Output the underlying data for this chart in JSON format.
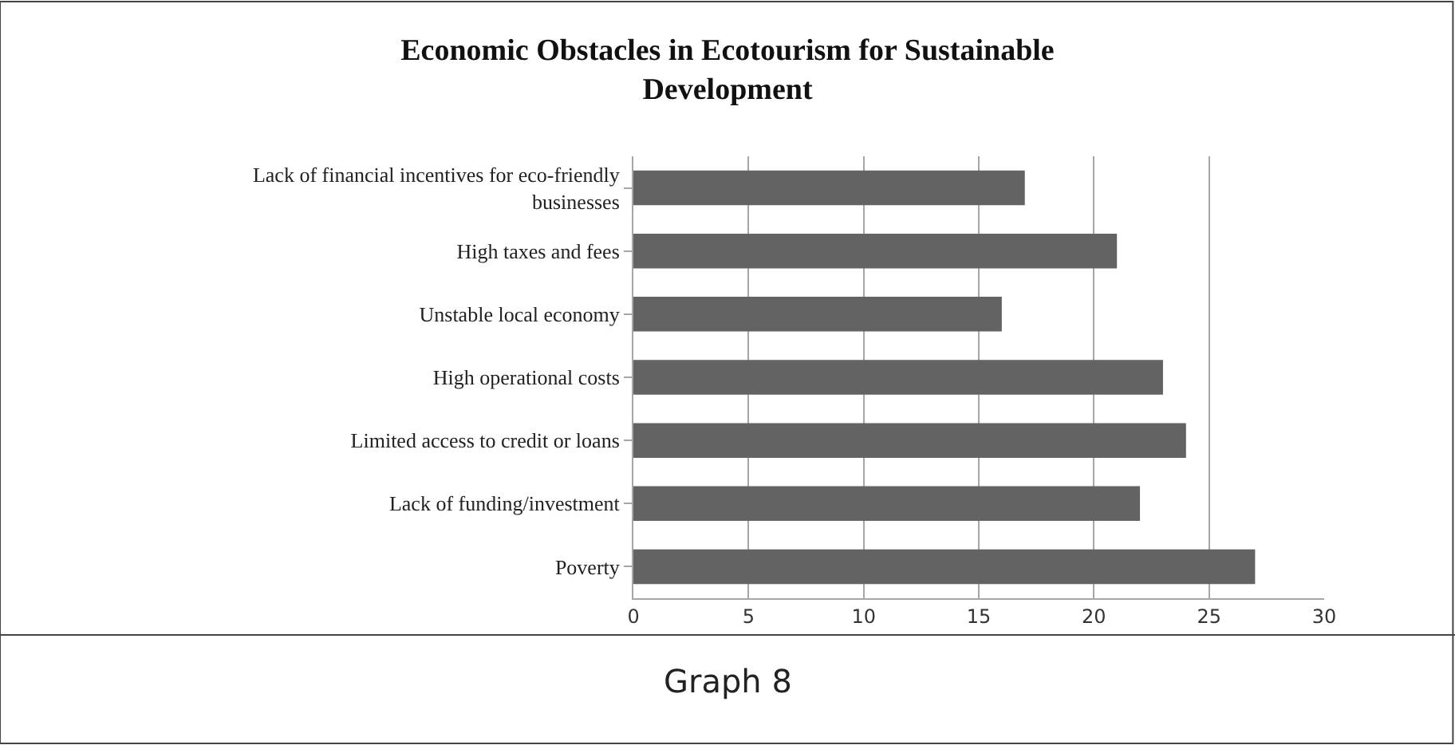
{
  "chart_data": {
    "type": "bar",
    "orientation": "horizontal",
    "title": "Economic Obstacles in Ecotourism for Sustainable Development",
    "categories": [
      "Lack of financial incentives for eco-friendly businesses",
      "High taxes and fees",
      "Unstable local economy",
      "High operational costs",
      "Limited access to credit or loans",
      "Lack of funding/investment",
      "Poverty"
    ],
    "values": [
      17,
      21,
      16,
      23,
      24,
      22,
      27
    ],
    "color": "#636363",
    "xlim": [
      0,
      30
    ],
    "xticks": [
      0,
      5,
      10,
      15,
      20,
      25,
      30
    ],
    "grid": "x",
    "annotations": [
      "Graph 8"
    ]
  }
}
